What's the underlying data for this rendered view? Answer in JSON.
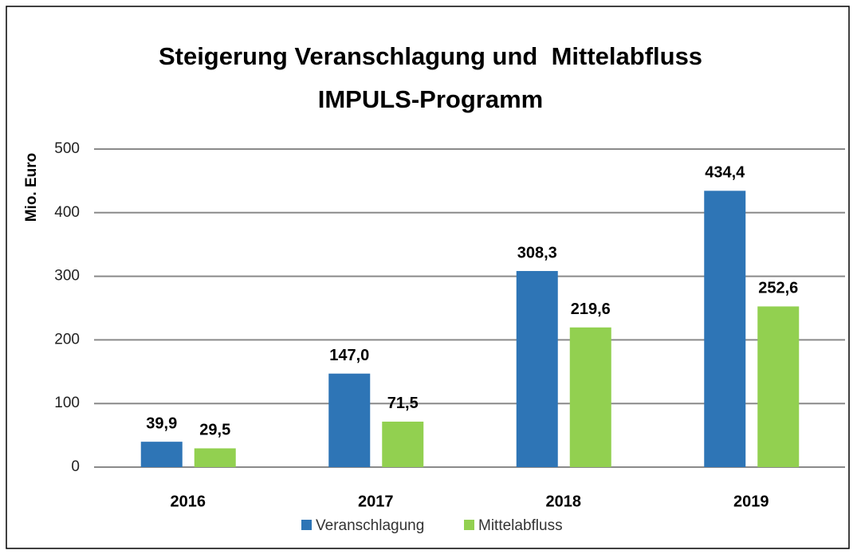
{
  "chart_data": {
    "type": "bar",
    "title": [
      "Steigerung Veranschlagung und  Mittelabfluss",
      "IMPULS-Programm"
    ],
    "y_label": "Mio. Euro",
    "categories": [
      "2016",
      "2017",
      "2018",
      "2019"
    ],
    "series": [
      {
        "name": "Veranschlagung",
        "color": "#2e75b6",
        "values": [
          39.9,
          147.0,
          308.3,
          434.4
        ],
        "value_labels": [
          "39,9",
          "147,0",
          "308,3",
          "434,4"
        ]
      },
      {
        "name": "Mittelabfluss",
        "color": "#92d050",
        "values": [
          29.5,
          71.5,
          219.6,
          252.6
        ],
        "value_labels": [
          "29,5",
          "71,5",
          "219,6",
          "252,6"
        ]
      }
    ],
    "ylim": [
      0,
      500
    ],
    "yticks": [
      0,
      100,
      200,
      300,
      400,
      500
    ],
    "grid": true,
    "legend": "bottom"
  }
}
